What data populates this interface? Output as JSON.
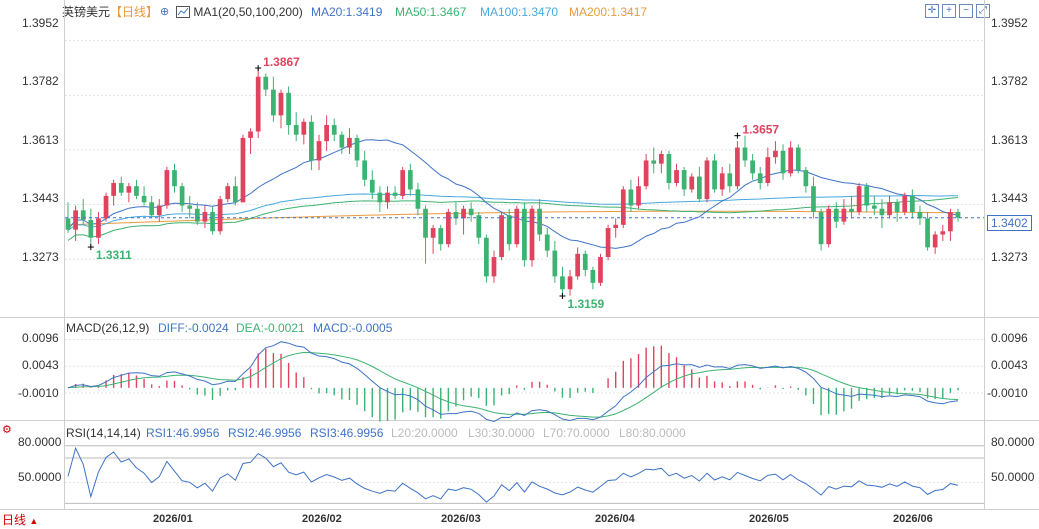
{
  "header": {
    "symbol": "英镑美元",
    "period": "【日线】",
    "ma_label": "MA1(20,50,100,200)",
    "ma20": "MA20:1.3419",
    "ma50": "MA50:1.3467",
    "ma100": "MA100:1.3470",
    "ma200": "MA200:1.3417"
  },
  "macd": {
    "label": "MACD(26,12,9)",
    "diff": "DIFF:-0.0024",
    "dea": "DEA:-0.0021",
    "macd": "MACD:-0.0005"
  },
  "rsi": {
    "label": "RSI(14,14,14)",
    "rsi1": "RSI1:46.9956",
    "rsi2": "RSI2:46.9956",
    "rsi3": "RSI3:46.9956",
    "l20": "L20:20.0000",
    "l30": "L30:30.0000",
    "l70": "L70:70.0000",
    "l80": "L80:80.0000"
  },
  "footer": {
    "period_label": "日线"
  },
  "colors": {
    "up": "#e0435d",
    "down": "#3cb371",
    "ma20": "#3f73c6",
    "ma50": "#3cb371",
    "ma100": "#46a9e0",
    "ma200": "#e89a3c",
    "diff": "#3f73c6",
    "dea": "#3cb371",
    "rsi": "#3f73c6",
    "grid": "#e4e4e4"
  },
  "icons": [
    "crosshair-icon",
    "zoom-in-icon",
    "zoom-out-icon",
    "fullscreen-icon"
  ],
  "chart_data": [
    {
      "type": "candlestick",
      "title": "英镑美元 日线",
      "y_ticks": [
        "1.3952",
        "1.3782",
        "1.3613",
        "1.3443",
        "1.3273"
      ],
      "ylim": [
        1.31,
        1.401
      ],
      "x_ticks": [
        "2026/01",
        "2026/02",
        "2026/03",
        "2026/04",
        "2026/05",
        "2026/06"
      ],
      "last_price": "1.3402",
      "annotations": {
        "max": "1.3867",
        "min": "1.3159",
        "local_max": "1.3657",
        "local_min": "1.3311"
      },
      "candles": [
        [
          1.34,
          1.345,
          1.3355,
          1.3365
        ],
        [
          1.3365,
          1.344,
          1.333,
          1.3425
        ],
        [
          1.3425,
          1.346,
          1.338,
          1.3395
        ],
        [
          1.3395,
          1.343,
          1.3311,
          1.334
        ],
        [
          1.334,
          1.342,
          1.332,
          1.34
        ],
        [
          1.34,
          1.348,
          1.339,
          1.347
        ],
        [
          1.347,
          1.352,
          1.344,
          1.351
        ],
        [
          1.351,
          1.353,
          1.347,
          1.348
        ],
        [
          1.348,
          1.351,
          1.345,
          1.35
        ],
        [
          1.35,
          1.352,
          1.346,
          1.347
        ],
        [
          1.347,
          1.35,
          1.344,
          1.345
        ],
        [
          1.345,
          1.347,
          1.34,
          1.341
        ],
        [
          1.341,
          1.346,
          1.339,
          1.344
        ],
        [
          1.344,
          1.356,
          1.343,
          1.355
        ],
        [
          1.355,
          1.357,
          1.348,
          1.35
        ],
        [
          1.35,
          1.351,
          1.342,
          1.344
        ],
        [
          1.344,
          1.347,
          1.34,
          1.343
        ],
        [
          1.343,
          1.345,
          1.338,
          1.339
        ],
        [
          1.339,
          1.344,
          1.337,
          1.342
        ],
        [
          1.342,
          1.344,
          1.335,
          1.336
        ],
        [
          1.336,
          1.347,
          1.335,
          1.346
        ],
        [
          1.346,
          1.351,
          1.345,
          1.35
        ],
        [
          1.35,
          1.353,
          1.344,
          1.345
        ],
        [
          1.345,
          1.366,
          1.345,
          1.365
        ],
        [
          1.365,
          1.368,
          1.36,
          1.367
        ],
        [
          1.367,
          1.3867,
          1.365,
          1.384
        ],
        [
          1.384,
          1.385,
          1.378,
          1.38
        ],
        [
          1.38,
          1.384,
          1.37,
          1.372
        ],
        [
          1.372,
          1.38,
          1.368,
          1.379
        ],
        [
          1.379,
          1.381,
          1.366,
          1.369
        ],
        [
          1.369,
          1.373,
          1.364,
          1.366
        ],
        [
          1.366,
          1.371,
          1.363,
          1.37
        ],
        [
          1.37,
          1.372,
          1.355,
          1.358
        ],
        [
          1.358,
          1.366,
          1.355,
          1.364
        ],
        [
          1.364,
          1.372,
          1.361,
          1.369
        ],
        [
          1.369,
          1.371,
          1.364,
          1.366
        ],
        [
          1.366,
          1.367,
          1.36,
          1.362
        ],
        [
          1.362,
          1.368,
          1.36,
          1.365
        ],
        [
          1.365,
          1.366,
          1.356,
          1.358
        ],
        [
          1.358,
          1.361,
          1.35,
          1.352
        ],
        [
          1.352,
          1.355,
          1.346,
          1.348
        ],
        [
          1.348,
          1.35,
          1.342,
          1.345
        ],
        [
          1.345,
          1.35,
          1.343,
          1.348
        ],
        [
          1.348,
          1.35,
          1.346,
          1.347
        ],
        [
          1.347,
          1.356,
          1.346,
          1.355
        ],
        [
          1.355,
          1.357,
          1.347,
          1.349
        ],
        [
          1.349,
          1.351,
          1.341,
          1.343
        ],
        [
          1.343,
          1.344,
          1.326,
          1.334
        ],
        [
          1.334,
          1.338,
          1.329,
          1.337
        ],
        [
          1.337,
          1.338,
          1.33,
          1.332
        ],
        [
          1.332,
          1.343,
          1.331,
          1.342
        ],
        [
          1.342,
          1.345,
          1.338,
          1.34
        ],
        [
          1.34,
          1.344,
          1.335,
          1.343
        ],
        [
          1.343,
          1.345,
          1.339,
          1.341
        ],
        [
          1.341,
          1.342,
          1.332,
          1.334
        ],
        [
          1.334,
          1.335,
          1.32,
          1.322
        ],
        [
          1.322,
          1.33,
          1.32,
          1.328
        ],
        [
          1.328,
          1.342,
          1.327,
          1.341
        ],
        [
          1.341,
          1.343,
          1.33,
          1.332
        ],
        [
          1.332,
          1.344,
          1.331,
          1.343
        ],
        [
          1.343,
          1.345,
          1.325,
          1.327
        ],
        [
          1.327,
          1.344,
          1.325,
          1.343
        ],
        [
          1.343,
          1.346,
          1.333,
          1.335
        ],
        [
          1.335,
          1.337,
          1.328,
          1.33
        ],
        [
          1.33,
          1.333,
          1.32,
          1.322
        ],
        [
          1.322,
          1.325,
          1.3159,
          1.318
        ],
        [
          1.318,
          1.324,
          1.316,
          1.322
        ],
        [
          1.322,
          1.331,
          1.321,
          1.329
        ],
        [
          1.329,
          1.33,
          1.322,
          1.324
        ],
        [
          1.324,
          1.325,
          1.318,
          1.32
        ],
        [
          1.32,
          1.329,
          1.319,
          1.328
        ],
        [
          1.328,
          1.338,
          1.327,
          1.337
        ],
        [
          1.337,
          1.34,
          1.334,
          1.338
        ],
        [
          1.338,
          1.35,
          1.337,
          1.349
        ],
        [
          1.349,
          1.352,
          1.342,
          1.344
        ],
        [
          1.344,
          1.353,
          1.343,
          1.35
        ],
        [
          1.35,
          1.36,
          1.349,
          1.358
        ],
        [
          1.358,
          1.362,
          1.354,
          1.357
        ],
        [
          1.357,
          1.361,
          1.354,
          1.36
        ],
        [
          1.36,
          1.361,
          1.349,
          1.351
        ],
        [
          1.351,
          1.357,
          1.35,
          1.355
        ],
        [
          1.355,
          1.356,
          1.347,
          1.349
        ],
        [
          1.349,
          1.354,
          1.348,
          1.353
        ],
        [
          1.353,
          1.356,
          1.345,
          1.346
        ],
        [
          1.346,
          1.359,
          1.345,
          1.358
        ],
        [
          1.358,
          1.36,
          1.348,
          1.349
        ],
        [
          1.349,
          1.356,
          1.347,
          1.354
        ],
        [
          1.354,
          1.357,
          1.348,
          1.35
        ],
        [
          1.35,
          1.364,
          1.349,
          1.362
        ],
        [
          1.362,
          1.3657,
          1.356,
          1.358
        ],
        [
          1.358,
          1.36,
          1.352,
          1.354
        ],
        [
          1.354,
          1.356,
          1.349,
          1.351
        ],
        [
          1.351,
          1.362,
          1.35,
          1.359
        ],
        [
          1.359,
          1.364,
          1.357,
          1.361
        ],
        [
          1.361,
          1.363,
          1.352,
          1.354
        ],
        [
          1.354,
          1.364,
          1.353,
          1.362
        ],
        [
          1.362,
          1.363,
          1.354,
          1.355
        ],
        [
          1.355,
          1.356,
          1.348,
          1.35
        ],
        [
          1.35,
          1.353,
          1.34,
          1.342
        ],
        [
          1.342,
          1.343,
          1.33,
          1.332
        ],
        [
          1.332,
          1.344,
          1.331,
          1.343
        ],
        [
          1.343,
          1.345,
          1.337,
          1.339
        ],
        [
          1.339,
          1.346,
          1.338,
          1.343
        ],
        [
          1.343,
          1.347,
          1.34,
          1.342
        ],
        [
          1.342,
          1.351,
          1.341,
          1.35
        ],
        [
          1.35,
          1.351,
          1.342,
          1.344
        ],
        [
          1.344,
          1.347,
          1.341,
          1.343
        ],
        [
          1.343,
          1.346,
          1.337,
          1.341
        ],
        [
          1.341,
          1.347,
          1.34,
          1.345
        ],
        [
          1.345,
          1.346,
          1.339,
          1.342
        ],
        [
          1.342,
          1.348,
          1.341,
          1.347
        ],
        [
          1.347,
          1.349,
          1.34,
          1.342
        ],
        [
          1.342,
          1.344,
          1.338,
          1.34
        ],
        [
          1.34,
          1.342,
          1.33,
          1.331
        ],
        [
          1.331,
          1.336,
          1.329,
          1.335
        ],
        [
          1.335,
          1.338,
          1.333,
          1.336
        ],
        [
          1.336,
          1.343,
          1.333,
          1.342
        ],
        [
          1.342,
          1.343,
          1.339,
          1.3402
        ]
      ]
    },
    {
      "type": "line",
      "title": "MACD(26,12,9)",
      "y_ticks": [
        "0.0096",
        "0.0043",
        "-0.0010"
      ],
      "ylim": [
        -0.006,
        0.0115
      ],
      "series_names": [
        "DIFF",
        "DEA",
        "MACD"
      ]
    },
    {
      "type": "line",
      "title": "RSI(14,14,14)",
      "y_ticks": [
        "80.0000",
        "50.0000"
      ],
      "ylim": [
        30,
        88
      ],
      "levels": [
        80,
        70
      ]
    }
  ]
}
